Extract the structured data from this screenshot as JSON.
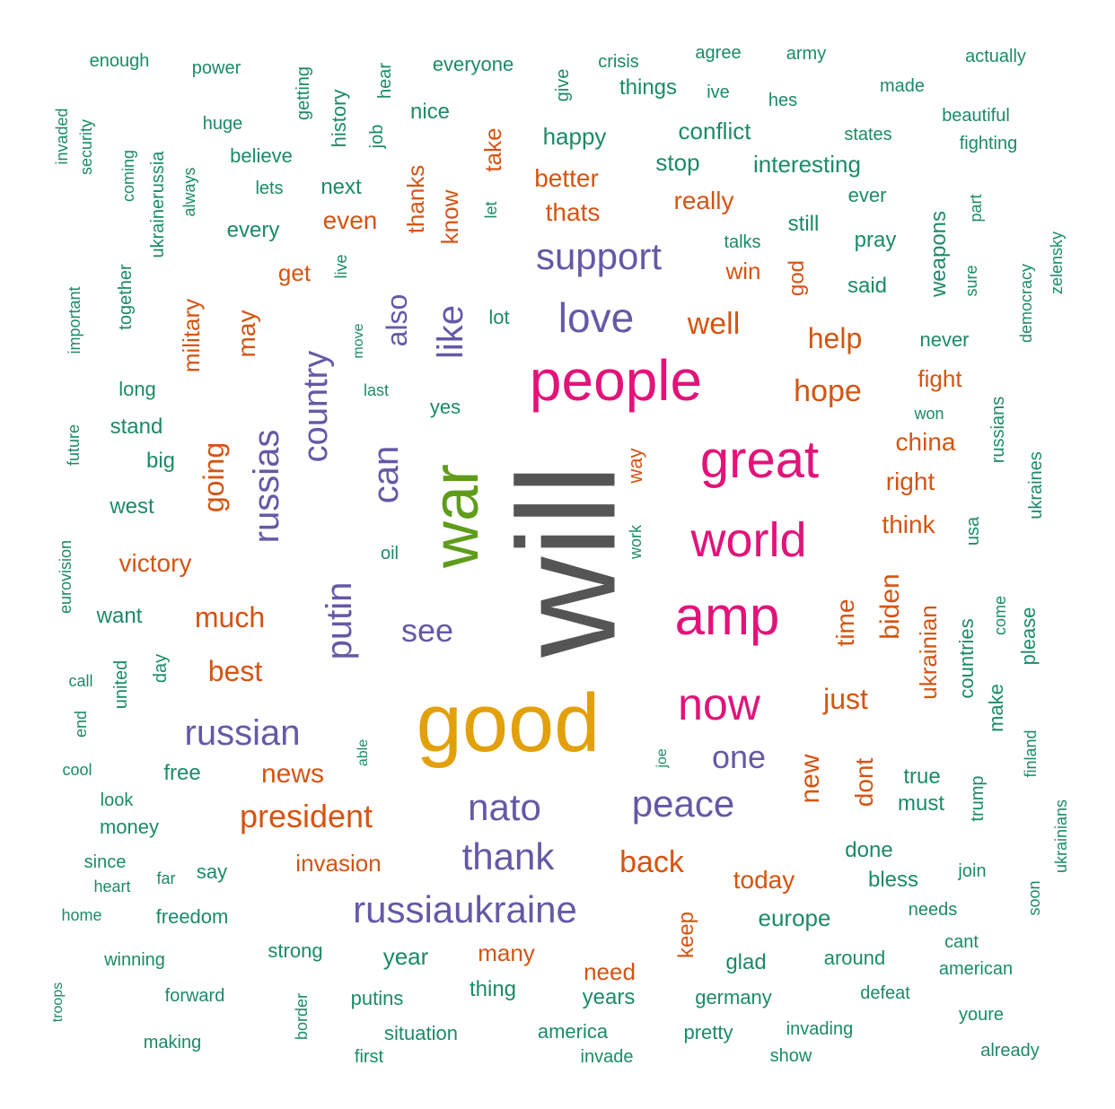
{
  "colors": {
    "s": "#1b8a68",
    "o": "#d55412",
    "p": "#6559a6",
    "m": "#e2137a",
    "g": "#5f9c1a",
    "y": "#e2a00a",
    "k": "#555555"
  },
  "words": [
    "will",
    "good",
    "war",
    "people",
    "great",
    "world",
    "amp",
    "now",
    "support",
    "love",
    "russias",
    "country",
    "can",
    "like",
    "putin",
    "russian",
    "nato",
    "thank",
    "peace",
    "see",
    "one",
    "russiaukraine",
    "president",
    "back",
    "news",
    "much",
    "best",
    "victory",
    "going",
    "military",
    "well",
    "help",
    "hope",
    "china",
    "right",
    "think",
    "time",
    "biden",
    "ukrainian",
    "just",
    "new",
    "dont",
    "today",
    "invasion",
    "many",
    "need",
    "keep",
    "better",
    "thats",
    "really",
    "even",
    "get",
    "may",
    "also",
    "thanks",
    "know",
    "take",
    "win",
    "god",
    "fight",
    "way",
    "enough",
    "power",
    "getting",
    "hear",
    "everyone",
    "give",
    "crisis",
    "agree",
    "army",
    "actually",
    "things",
    "ive",
    "hes",
    "made",
    "invaded",
    "security",
    "huge",
    "history",
    "job",
    "nice",
    "happy",
    "conflict",
    "states",
    "beautiful",
    "fighting",
    "coming",
    "ukrainerussia",
    "always",
    "believe",
    "lets",
    "next",
    "stop",
    "interesting",
    "ever",
    "every",
    "let",
    "pray",
    "still",
    "talks",
    "weapons",
    "part",
    "zelensky",
    "sure",
    "democracy",
    "together",
    "important",
    "live",
    "said",
    "lot",
    "move",
    "last",
    "never",
    "long",
    "won",
    "stand",
    "yes",
    "big",
    "russians",
    "future",
    "ukraines",
    "west",
    "work",
    "usa",
    "oil",
    "eurovision",
    "want",
    "come",
    "please",
    "countries",
    "call",
    "united",
    "day",
    "make",
    "end",
    "able",
    "joe",
    "cool",
    "free",
    "true",
    "must",
    "look",
    "money",
    "finland",
    "trump",
    "ukrainians",
    "since",
    "say",
    "done",
    "bless",
    "join",
    "heart",
    "far",
    "home",
    "freedom",
    "needs",
    "soon",
    "europe",
    "strong",
    "year",
    "around",
    "cant",
    "winning",
    "glad",
    "american",
    "troops",
    "forward",
    "putins",
    "thing",
    "years",
    "germany",
    "defeat",
    "border",
    "youre",
    "situation",
    "america",
    "pretty",
    "invading",
    "making",
    "first",
    "invade",
    "show",
    "already"
  ]
}
